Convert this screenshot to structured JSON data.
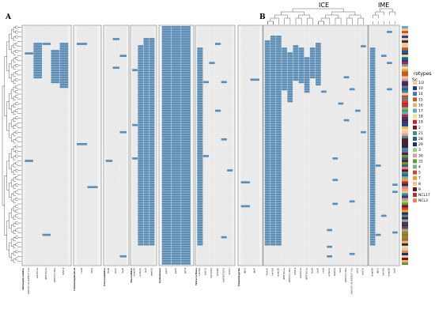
{
  "panels": {
    "a": {
      "letter": "A"
    },
    "b": {
      "letter": "B",
      "clade_ice": "ICE",
      "clade_ime": "IME"
    }
  },
  "legend": {
    "title_line1": "Sc",
    "title_line2": "rotypes",
    "entries": [
      {
        "label": "1/2",
        "color": "#f2c6a0"
      },
      {
        "label": "10",
        "color": "#1f3f8a"
      },
      {
        "label": "14",
        "color": "#4a74b8"
      },
      {
        "label": "15",
        "color": "#c65a1e"
      },
      {
        "label": "16",
        "color": "#e8b26a"
      },
      {
        "label": "17",
        "color": "#63a7c9"
      },
      {
        "label": "18",
        "color": "#f0e08a"
      },
      {
        "label": "19",
        "color": "#c8222e"
      },
      {
        "label": "2",
        "color": "#7a1519"
      },
      {
        "label": "21",
        "color": "#3c8f8c"
      },
      {
        "label": "28",
        "color": "#2c5f86"
      },
      {
        "label": "29",
        "color": "#1c2f55"
      },
      {
        "label": "3",
        "color": "#9bcf8e"
      },
      {
        "label": "30",
        "color": "#e59aa0"
      },
      {
        "label": "31",
        "color": "#5f9a3a"
      },
      {
        "label": "4",
        "color": "#7bb48c"
      },
      {
        "label": "5",
        "color": "#d5432c"
      },
      {
        "label": "7",
        "color": "#f09a3a"
      },
      {
        "label": "8",
        "color": "#f5c48a"
      },
      {
        "label": "9",
        "color": "#6e1420"
      },
      {
        "label": "NCL17",
        "color": "#b0302a"
      },
      {
        "label": "NCL3",
        "color": "#e8836a"
      }
    ]
  },
  "heatmap_a": {
    "groups": [
      {
        "name": "Aminoglycosides",
        "genes": [
          "AAC(6')-Ie-APH(2'')-Ia",
          "ant(6)-Ia",
          "ANT(6)-Ia",
          "APH(3')-IIIa",
          "SAT-4"
        ]
      },
      {
        "name": "Chloramphenicol",
        "genes": [
          "catA",
          "catQ"
        ]
      },
      {
        "name": "Lincosamides",
        "genes": [
          "lnuB",
          "lnuC",
          "lsaE"
        ]
      },
      {
        "name": "Macrolides",
        "genes": [
          "erm(B)",
          "erm(A)",
          "mel",
          "mef(A)"
        ]
      },
      {
        "name": "Quinolones",
        "genes": [
          "parC",
          "parE",
          "gyrA"
        ]
      },
      {
        "name": "Tetracyclines",
        "genes": [
          "tet(M)",
          "tet(O)",
          "tet(S/M)",
          "tet(40)",
          "tet(W/32/O)",
          "tet(L)"
        ]
      },
      {
        "name": "Trimethoprim",
        "genes": [
          "dfrG",
          "dfrF"
        ]
      }
    ]
  },
  "heatmap_b": {
    "genes": [
      "Tn916",
      "tet(M)",
      "erm(B)",
      "ANT(6)-Ia",
      "APH(3')-IIIa",
      "SAT-4",
      "ant(6)-Ia",
      "ANT(6)-Ia",
      "lnuB",
      "lsaE",
      "catA",
      "erm(A)",
      "mef(A)",
      "mel",
      "APH(3')-IIIa",
      "AAC(6')-Ie-APH(2'')-Ia",
      "catQ",
      "tet(O)",
      "erm(B)",
      "dfrG",
      "tet(M)",
      "erm(B)",
      "lsaE"
    ]
  },
  "colors": {
    "present": "#5b8db5",
    "absent": "#e9e9e9",
    "grid": "#ffffff",
    "tree": "#333333"
  }
}
